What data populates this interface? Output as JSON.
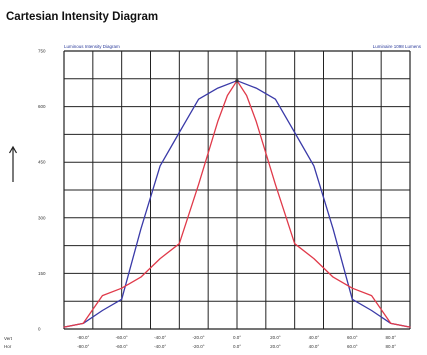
{
  "header": {
    "title": "Cartesian Intensity Diagram",
    "subtitle_left": "Luminous Intensity Diagram",
    "subtitle_right": "Luminaire 1098 Lumens"
  },
  "row_labels": [
    "Vert",
    "Hor"
  ],
  "colors": {
    "grid": "#222222",
    "blue_curve": "#3a3aa8",
    "red_curve": "#e03a4a",
    "background": "#ffffff"
  },
  "chart_data": {
    "type": "line",
    "title": "Cartesian Intensity Diagram",
    "xlabel": "",
    "ylabel": "",
    "xlim": [
      -90,
      90
    ],
    "ylim": [
      0,
      750
    ],
    "grid": true,
    "y_ticks": [
      0,
      150,
      300,
      450,
      600,
      750
    ],
    "y_tick_labels": [
      "0",
      "150",
      "300",
      "450",
      "600",
      "750"
    ],
    "x_ticks": [
      -80,
      -60,
      -40,
      -20,
      0,
      20,
      40,
      60,
      80
    ],
    "x_tick_labels_row1": [
      "-80.0°",
      "-60.0°",
      "-40.0°",
      "-20.0°",
      "0.0°",
      "20.0°",
      "40.0°",
      "60.0°",
      "80.0°"
    ],
    "x_tick_labels_row2": [
      "-80.0°",
      "-60.0°",
      "-40.0°",
      "-20.0°",
      "0.0°",
      "20.0°",
      "40.0°",
      "60.0°",
      "80.0°"
    ],
    "series": [
      {
        "color": "#3a3aa8",
        "x": [
          -90,
          -80,
          -70,
          -60,
          -50,
          -40,
          -30,
          -20,
          -10,
          0,
          10,
          20,
          30,
          40,
          50,
          60,
          70,
          80,
          90
        ],
        "y": [
          5,
          15,
          50,
          80,
          270,
          440,
          530,
          620,
          650,
          670,
          650,
          620,
          530,
          440,
          270,
          80,
          50,
          15,
          5
        ]
      },
      {
        "color": "#e03a4a",
        "x": [
          -90,
          -80,
          -70,
          -60,
          -50,
          -40,
          -30,
          -20,
          -10,
          -5,
          0,
          5,
          10,
          20,
          30,
          40,
          50,
          60,
          70,
          80,
          90
        ],
        "y": [
          5,
          15,
          90,
          110,
          140,
          190,
          230,
          390,
          560,
          630,
          670,
          630,
          560,
          390,
          230,
          190,
          140,
          110,
          90,
          15,
          5
        ]
      }
    ]
  }
}
